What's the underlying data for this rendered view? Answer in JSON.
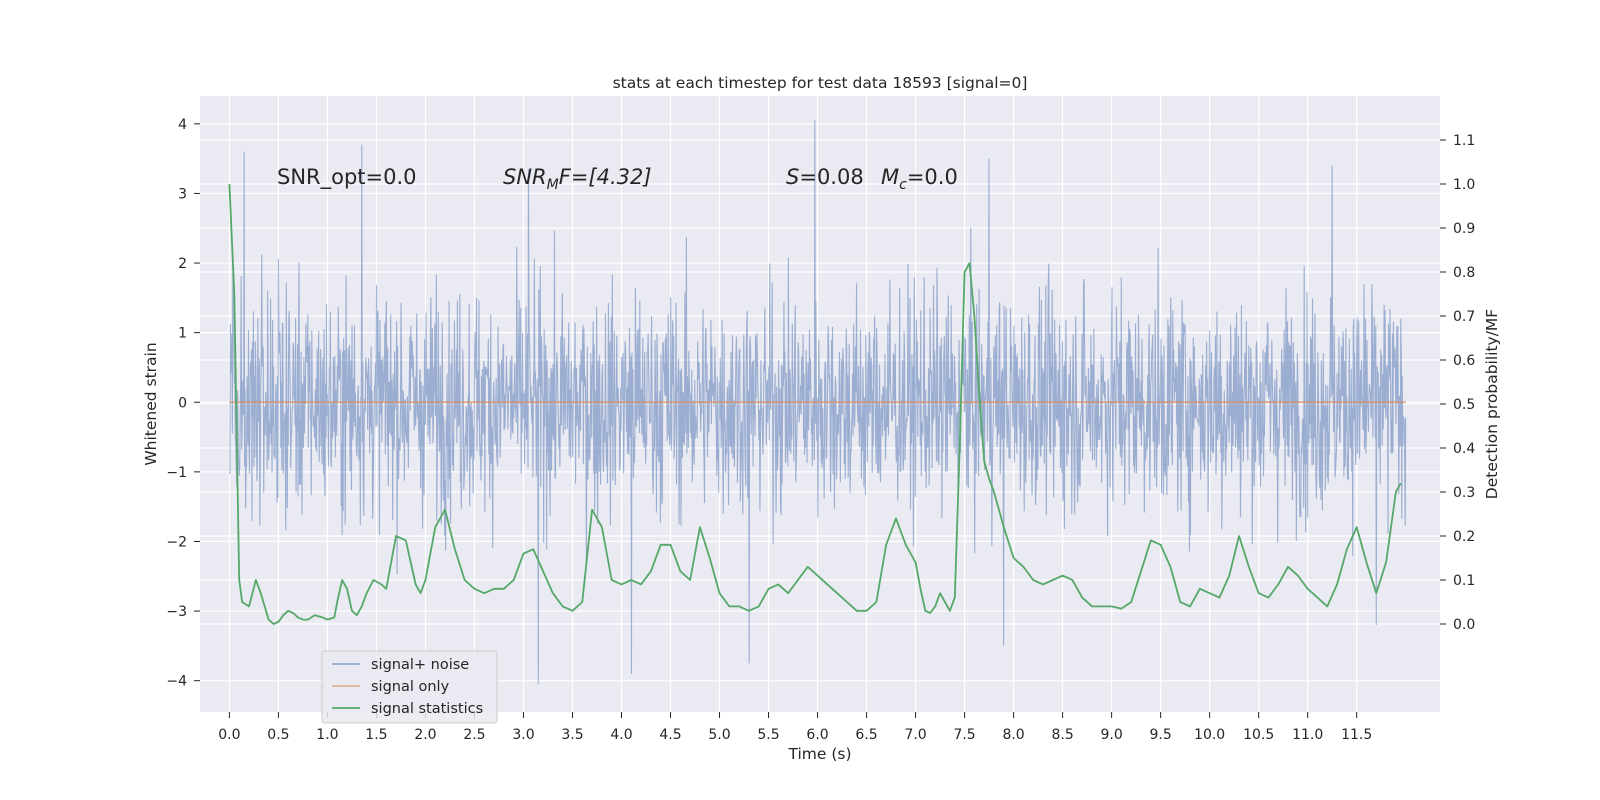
{
  "chart_data": {
    "type": "line",
    "title": "stats at each timestep for test data 18593 [signal=0]",
    "xlabel": "Time (s)",
    "ylabel": "Whitened strain",
    "ylabel_right": "Detection probability/MF",
    "xlim": [
      -0.3,
      12.35
    ],
    "ylim": [
      -4.45,
      4.4
    ],
    "ylim_right": [
      -0.2,
      1.2
    ],
    "x_ticks": [
      0.0,
      0.5,
      1.0,
      1.5,
      2.0,
      2.5,
      3.0,
      3.5,
      4.0,
      4.5,
      5.0,
      5.5,
      6.0,
      6.5,
      7.0,
      7.5,
      8.0,
      8.5,
      9.0,
      9.5,
      10.0,
      10.5,
      11.0,
      11.5
    ],
    "x_tick_labels": [
      "0.0",
      "0.5",
      "1.0",
      "1.5",
      "2.0",
      "2.5",
      "3.0",
      "3.5",
      "4.0",
      "4.5",
      "5.0",
      "5.5",
      "6.0",
      "6.5",
      "7.0",
      "7.5",
      "8.0",
      "8.5",
      "9.0",
      "9.5",
      "10.0",
      "10.5",
      "11.0",
      "11.5"
    ],
    "y_ticks": [
      -4,
      -3,
      -2,
      -1,
      0,
      1,
      2,
      3,
      4
    ],
    "y_tick_labels": [
      "−4",
      "−3",
      "−2",
      "−1",
      "0",
      "1",
      "2",
      "3",
      "4"
    ],
    "y_right_ticks": [
      0.0,
      0.1,
      0.2,
      0.3,
      0.4,
      0.5,
      0.6,
      0.7,
      0.8,
      0.9,
      1.0,
      1.1
    ],
    "y_right_tick_labels": [
      "0.0",
      "0.1",
      "0.2",
      "0.3",
      "0.4",
      "0.5",
      "0.6",
      "0.7",
      "0.8",
      "0.9",
      "1.0",
      "1.1"
    ],
    "grid": true,
    "legend_position": "lower-left",
    "colors": {
      "noise": "#4c72b0",
      "signal": "#dd8452",
      "stats": "#55a868",
      "plot_bg": "#eaeaf2",
      "grid": "#ffffff",
      "text": "#262626"
    },
    "annotations": {
      "snr_opt": "SNR_opt=0.0",
      "snr_mf_prefix": "SNR",
      "snr_mf_sub": "M",
      "snr_mf_suffix": "F=[4.32]",
      "s_sym": "S",
      "s_val": "=0.08",
      "mc_sym": "M",
      "mc_sub": "c",
      "mc_val": "=0.0"
    },
    "series": [
      {
        "name": "signal+ noise",
        "kind": "noise",
        "x_range": [
          0.0,
          12.0
        ],
        "approx_envelope": [
          -1.9,
          1.9
        ],
        "approx_peaks": [
          {
            "x": 0.15,
            "y": 3.6
          },
          {
            "x": 1.35,
            "y": 3.7
          },
          {
            "x": 3.05,
            "y": 3.35
          },
          {
            "x": 5.97,
            "y": 4.05
          },
          {
            "x": 7.75,
            "y": 3.5
          },
          {
            "x": 11.25,
            "y": 3.4
          },
          {
            "x": 3.15,
            "y": -4.05
          },
          {
            "x": 4.1,
            "y": -3.9
          },
          {
            "x": 7.9,
            "y": -3.5
          },
          {
            "x": 5.3,
            "y": -3.75
          },
          {
            "x": 11.7,
            "y": -3.2
          }
        ]
      },
      {
        "name": "signal only",
        "kind": "signal",
        "x": [
          0.0,
          12.0
        ],
        "y": [
          0.0,
          0.0
        ]
      },
      {
        "name": "signal statistics",
        "kind": "stats",
        "axis": "right",
        "x": [
          0.0,
          0.05,
          0.1,
          0.13,
          0.2,
          0.27,
          0.32,
          0.4,
          0.45,
          0.5,
          0.55,
          0.6,
          0.65,
          0.7,
          0.75,
          0.8,
          0.87,
          0.95,
          1.0,
          1.07,
          1.1,
          1.15,
          1.2,
          1.25,
          1.3,
          1.35,
          1.4,
          1.47,
          1.55,
          1.6,
          1.7,
          1.8,
          1.9,
          1.95,
          2.0,
          2.1,
          2.2,
          2.3,
          2.4,
          2.5,
          2.6,
          2.7,
          2.8,
          2.9,
          3.0,
          3.1,
          3.2,
          3.3,
          3.4,
          3.5,
          3.6,
          3.7,
          3.8,
          3.9,
          4.0,
          4.1,
          4.2,
          4.3,
          4.4,
          4.5,
          4.6,
          4.7,
          4.8,
          4.9,
          5.0,
          5.1,
          5.2,
          5.3,
          5.4,
          5.5,
          5.6,
          5.7,
          5.8,
          5.9,
          6.0,
          6.1,
          6.2,
          6.3,
          6.4,
          6.5,
          6.6,
          6.7,
          6.8,
          6.9,
          7.0,
          7.05,
          7.1,
          7.15,
          7.2,
          7.25,
          7.3,
          7.35,
          7.4,
          7.45,
          7.5,
          7.55,
          7.6,
          7.65,
          7.7,
          7.75,
          7.8,
          7.9,
          8.0,
          8.1,
          8.2,
          8.3,
          8.4,
          8.5,
          8.6,
          8.7,
          8.8,
          8.9,
          9.0,
          9.1,
          9.2,
          9.3,
          9.4,
          9.5,
          9.6,
          9.7,
          9.8,
          9.9,
          10.0,
          10.1,
          10.2,
          10.3,
          10.4,
          10.5,
          10.6,
          10.7,
          10.8,
          10.9,
          11.0,
          11.1,
          11.2,
          11.3,
          11.4,
          11.5,
          11.6,
          11.7,
          11.8,
          11.9,
          11.95
        ],
        "y": [
          1.0,
          0.75,
          0.1,
          0.05,
          0.04,
          0.1,
          0.07,
          0.01,
          0.0,
          0.005,
          0.02,
          0.03,
          0.025,
          0.015,
          0.01,
          0.01,
          0.02,
          0.015,
          0.01,
          0.015,
          0.05,
          0.1,
          0.08,
          0.03,
          0.02,
          0.04,
          0.07,
          0.1,
          0.09,
          0.08,
          0.2,
          0.19,
          0.09,
          0.07,
          0.1,
          0.22,
          0.26,
          0.17,
          0.1,
          0.08,
          0.07,
          0.08,
          0.08,
          0.1,
          0.16,
          0.17,
          0.12,
          0.07,
          0.04,
          0.03,
          0.05,
          0.26,
          0.22,
          0.1,
          0.09,
          0.1,
          0.09,
          0.12,
          0.18,
          0.18,
          0.12,
          0.1,
          0.22,
          0.15,
          0.07,
          0.04,
          0.04,
          0.03,
          0.04,
          0.08,
          0.09,
          0.07,
          0.1,
          0.13,
          0.11,
          0.09,
          0.07,
          0.05,
          0.03,
          0.03,
          0.05,
          0.18,
          0.24,
          0.18,
          0.14,
          0.08,
          0.03,
          0.025,
          0.04,
          0.07,
          0.05,
          0.03,
          0.06,
          0.4,
          0.8,
          0.82,
          0.7,
          0.52,
          0.37,
          0.33,
          0.3,
          0.22,
          0.15,
          0.13,
          0.1,
          0.09,
          0.1,
          0.11,
          0.1,
          0.06,
          0.04,
          0.04,
          0.04,
          0.035,
          0.05,
          0.12,
          0.19,
          0.18,
          0.13,
          0.05,
          0.04,
          0.08,
          0.07,
          0.06,
          0.11,
          0.2,
          0.13,
          0.07,
          0.06,
          0.09,
          0.13,
          0.11,
          0.08,
          0.06,
          0.04,
          0.09,
          0.17,
          0.22,
          0.14,
          0.07,
          0.14,
          0.3,
          0.32
        ]
      }
    ]
  }
}
